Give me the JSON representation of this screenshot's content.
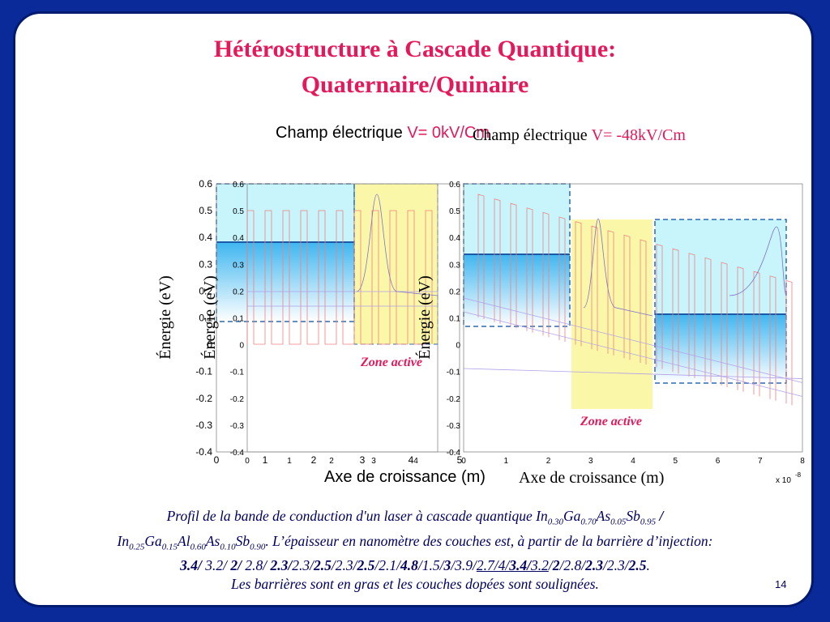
{
  "title": [
    "Hétérostructure à Cascade Quantique:",
    "Quaternaire/Quinaire"
  ],
  "fields": [
    {
      "label": "Champ électrique",
      "value": "V= 0kV/Cm"
    },
    {
      "label": "Champ électrique",
      "value": "V= -48kV/Cm"
    }
  ],
  "plots": [
    {
      "y_label": "Énergie (eV)",
      "x_label": "Axe de croissance (m)",
      "yticks": [
        "0.6",
        "0.5",
        "0.4",
        "0.3",
        "0.2",
        "0.1",
        "0",
        "-0.1",
        "-0.2",
        "-0.3",
        "-0.4"
      ],
      "xticks": [
        "0",
        "1",
        "2",
        "3",
        "4",
        "5"
      ]
    },
    {
      "y_label": "Énergie (eV)",
      "annotation": "Zone active",
      "yticks": [
        "0.6",
        "0.5",
        "0.4",
        "0.3",
        "0.2",
        "0.1",
        "0",
        "-0.1",
        "-0.2",
        "-0.3",
        "-0.4"
      ],
      "xticks": [
        "0",
        "1",
        "2",
        "3",
        "4"
      ]
    },
    {
      "y_label": "Énergie (eV)",
      "x_label": "Axe de croissance (m)",
      "annotation": "Zone active",
      "yticks": [
        "0.6",
        "0.5",
        "0.4",
        "0.3",
        "0.2",
        "0.1",
        "0",
        "-0.1",
        "-0.2",
        "-0.3",
        "-0.4"
      ],
      "xticks": [
        "0",
        "1",
        "2",
        "3",
        "4",
        "5",
        "6",
        "7",
        "8"
      ],
      "exponent": {
        "base": "x 10",
        "power": "-8"
      }
    }
  ],
  "caption": [
    [
      {
        "text": "Profil de la bande de conduction d'un laser à cascade quantique In",
        "style": "normal"
      },
      {
        "text": "0.30",
        "style": "sub"
      },
      {
        "text": "Ga",
        "style": "normal"
      },
      {
        "text": "0.70",
        "style": "sub"
      },
      {
        "text": "As",
        "style": "normal"
      },
      {
        "text": "0.05",
        "style": "sub"
      },
      {
        "text": "Sb",
        "style": "normal"
      },
      {
        "text": "0.95",
        "style": "sub"
      },
      {
        "text": " /",
        "style": "bold"
      }
    ],
    [
      {
        "text": "In",
        "style": "normal"
      },
      {
        "text": "0.25",
        "style": "sub"
      },
      {
        "text": "Ga",
        "style": "normal"
      },
      {
        "text": "0.15",
        "style": "sub"
      },
      {
        "text": "Al",
        "style": "normal"
      },
      {
        "text": "0.60",
        "style": "sub"
      },
      {
        "text": "As",
        "style": "normal"
      },
      {
        "text": "0.10",
        "style": "sub"
      },
      {
        "text": "Sb",
        "style": "normal"
      },
      {
        "text": "0.90",
        "style": "sub"
      },
      {
        "text": ". L’épaisseur en nanomètre des couches est, à partir de la barrière d’injection:",
        "style": "normal"
      }
    ],
    [
      {
        "text": "3.4/",
        "style": "bold"
      },
      {
        "text": " 3.2/",
        "style": "normal"
      },
      {
        "text": " 2/",
        "style": "bold"
      },
      {
        "text": " 2.8/",
        "style": "normal"
      },
      {
        "text": " 2.3/",
        "style": "bold"
      },
      {
        "text": "2.3/",
        "style": "normal"
      },
      {
        "text": "2.5",
        "style": "bold"
      },
      {
        "text": "/2.3/",
        "style": "normal"
      },
      {
        "text": "2.5",
        "style": "bold"
      },
      {
        "text": "/2.1/",
        "style": "normal"
      },
      {
        "text": "4.8",
        "style": "bold"
      },
      {
        "text": "/1.5/",
        "style": "normal"
      },
      {
        "text": "3",
        "style": "bold"
      },
      {
        "text": "/3.9/",
        "style": "normal"
      },
      {
        "text": "2.7/4/",
        "style": "underline"
      },
      {
        "text": "3.4/",
        "style": "bold-underline"
      },
      {
        "text": "3.2",
        "style": "underline"
      },
      {
        "text": "/",
        "style": "normal"
      },
      {
        "text": "2",
        "style": "bold"
      },
      {
        "text": "/2.8/",
        "style": "normal"
      },
      {
        "text": "2.3",
        "style": "bold"
      },
      {
        "text": "/2.3/",
        "style": "normal"
      },
      {
        "text": "2.5",
        "style": "bold"
      },
      {
        "text": ".",
        "style": "normal"
      }
    ],
    [
      {
        "text": "Les barrières sont en gras et les couches dopées sont soulignées.",
        "style": "normal"
      }
    ]
  ],
  "page_number": "14"
}
